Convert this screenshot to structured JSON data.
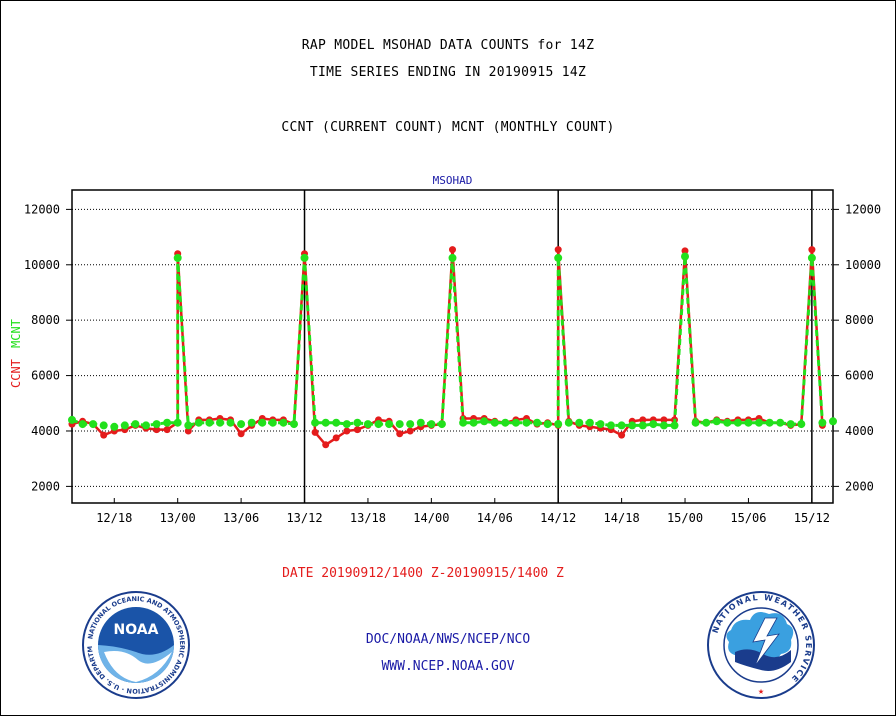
{
  "header": {
    "line1": "RAP MODEL MSOHAD DATA COUNTS for 14Z",
    "line2": "TIME SERIES ENDING IN 20190915 14Z",
    "line3": "CCNT (CURRENT COUNT) MCNT (MONTHLY COUNT)"
  },
  "footer": {
    "date_range": "DATE 20190912/1400 Z-20190915/1400 Z",
    "org": "DOC/NOAA/NWS/NCEP/NCO",
    "url": "WWW.NCEP.NOAA.GOV"
  },
  "logos": {
    "noaa_text": "NOAA",
    "noaa_ring_text": "NATIONAL OCEANIC AND ATMOSPHERIC ADMINISTRATION · U.S. DEPARTMENT OF COMMERCE",
    "nws_ring_text": "NATIONAL WEATHER SERVICE"
  },
  "chart_data": {
    "type": "line",
    "title": "MSOHAD",
    "ylabel": "CCNT  MCNT",
    "xlabel": "",
    "ylim": [
      1400,
      12700
    ],
    "yticks": [
      2000,
      4000,
      6000,
      8000,
      10000,
      12000
    ],
    "ytick_labels": [
      "2000",
      "4000",
      "6000",
      "8000",
      "10000",
      "12000"
    ],
    "x_unit": "hours since 2019-09-12 14Z",
    "xlim": [
      0,
      72
    ],
    "xticks": [
      4,
      10,
      16,
      22,
      28,
      34,
      40,
      46,
      52,
      58,
      64,
      70
    ],
    "xtick_labels": [
      "12/18",
      "13/00",
      "13/06",
      "13/12",
      "13/18",
      "14/00",
      "14/06",
      "14/12",
      "14/18",
      "15/00",
      "15/06",
      "15/12"
    ],
    "day_boundaries": [
      22,
      46,
      70
    ],
    "grid": true,
    "colors": {
      "CCNT": "#e41c1c",
      "MCNT": "#22e01c",
      "frame": "#000000",
      "title": "#1a1aa6"
    },
    "series": [
      {
        "name": "CCNT",
        "values": [
          4250,
          4350,
          4250,
          3850,
          4000,
          4050,
          4200,
          4100,
          4050,
          4050,
          4300,
          10400,
          4000,
          4400,
          4400,
          4450,
          4400,
          3900,
          4200,
          4450,
          4400,
          4400,
          4250,
          10400,
          3950,
          3500,
          3750,
          4000,
          4050,
          4200,
          4400,
          4350,
          3900,
          4000,
          4150,
          4200,
          4250,
          10550,
          4450,
          4450,
          4450,
          4350,
          4300,
          4400,
          4450,
          4250,
          4300,
          4200,
          10550,
          4350,
          4200,
          4150,
          4100,
          4050,
          3850,
          4350,
          4400,
          4400,
          4400,
          4400,
          10500,
          4350,
          4300,
          4400,
          4350,
          4400,
          4400,
          4450,
          4300,
          4300,
          4200,
          4250,
          10550,
          4200
        ],
        "x": [
          0,
          1,
          2,
          3,
          4,
          5,
          6,
          7,
          8,
          9,
          10,
          10,
          11,
          12,
          13,
          14,
          15,
          16,
          17,
          18,
          19,
          20,
          21,
          22,
          23,
          24,
          25,
          26,
          27,
          28,
          29,
          30,
          31,
          32,
          33,
          34,
          35,
          36,
          37,
          38,
          39,
          40,
          41,
          42,
          43,
          44,
          45,
          46,
          46,
          47,
          48,
          49,
          50,
          51,
          52,
          53,
          54,
          55,
          56,
          57,
          58,
          59,
          60,
          61,
          62,
          63,
          64,
          65,
          66,
          67,
          68,
          69,
          70,
          71
        ]
      },
      {
        "name": "MCNT",
        "values": [
          4400,
          4250,
          4250,
          4200,
          4150,
          4200,
          4250,
          4200,
          4250,
          4300,
          4300,
          10250,
          4200,
          4300,
          4300,
          4300,
          4300,
          4250,
          4300,
          4300,
          4300,
          4300,
          4250,
          10250,
          4300,
          4300,
          4300,
          4250,
          4300,
          4250,
          4250,
          4250,
          4250,
          4250,
          4300,
          4250,
          4250,
          10250,
          4300,
          4300,
          4350,
          4300,
          4300,
          4300,
          4300,
          4300,
          4250,
          4250,
          10250,
          4300,
          4300,
          4300,
          4250,
          4200,
          4200,
          4200,
          4200,
          4250,
          4200,
          4200,
          10300,
          4300,
          4300,
          4350,
          4300,
          4300,
          4300,
          4300,
          4300,
          4300,
          4250,
          4250,
          10250,
          4300,
          4350
        ],
        "x": [
          0,
          1,
          2,
          3,
          4,
          5,
          6,
          7,
          8,
          9,
          10,
          10,
          11,
          12,
          13,
          14,
          15,
          16,
          17,
          18,
          19,
          20,
          21,
          22,
          23,
          24,
          25,
          26,
          27,
          28,
          29,
          30,
          31,
          32,
          33,
          34,
          35,
          36,
          37,
          38,
          39,
          40,
          41,
          42,
          43,
          44,
          45,
          46,
          46,
          47,
          48,
          49,
          50,
          51,
          52,
          53,
          54,
          55,
          56,
          57,
          58,
          59,
          60,
          61,
          62,
          63,
          64,
          65,
          66,
          67,
          68,
          69,
          70,
          71,
          72
        ]
      }
    ]
  }
}
